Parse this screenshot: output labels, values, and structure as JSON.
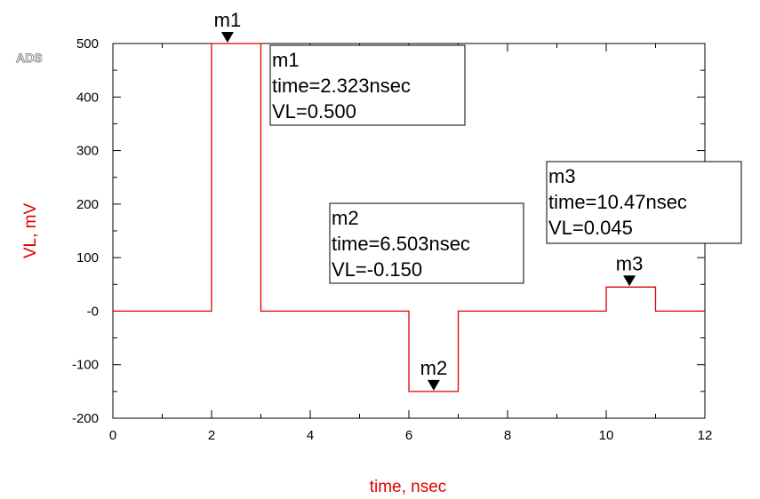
{
  "logo": "ADS",
  "colors": {
    "trace": "#e00000",
    "axis_label": "#e00000",
    "frame": "#000000",
    "text": "#000000"
  },
  "chart_data": {
    "type": "line",
    "xlabel": "time, nsec",
    "ylabel": "VL, mV",
    "xlim": [
      0,
      12
    ],
    "ylim": [
      -200,
      500
    ],
    "x_ticks": [
      "0",
      "2",
      "4",
      "6",
      "8",
      "10",
      "12"
    ],
    "y_ticks": [
      "-200",
      "-100",
      "-0",
      "100",
      "200",
      "300",
      "400",
      "500"
    ],
    "grid": false,
    "series": [
      {
        "x": [
          0,
          2,
          2,
          3,
          3,
          6,
          6,
          7,
          7,
          10,
          10,
          11,
          11,
          12
        ],
        "y": [
          0,
          0,
          500,
          500,
          0,
          0,
          -150,
          -150,
          0,
          0,
          45,
          45,
          0,
          0
        ]
      }
    ],
    "markers": [
      {
        "name": "m1",
        "time_value": 2.323,
        "y_value": 500,
        "lines": [
          "m1",
          "time=2.323nsec",
          "VL=0.500"
        ]
      },
      {
        "name": "m2",
        "time_value": 6.503,
        "y_value": -150,
        "lines": [
          "m2",
          "time=6.503nsec",
          "VL=-0.150"
        ]
      },
      {
        "name": "m3",
        "time_value": 10.47,
        "y_value": 45,
        "lines": [
          "m3",
          "time=10.47nsec",
          "VL=0.045"
        ]
      }
    ]
  }
}
